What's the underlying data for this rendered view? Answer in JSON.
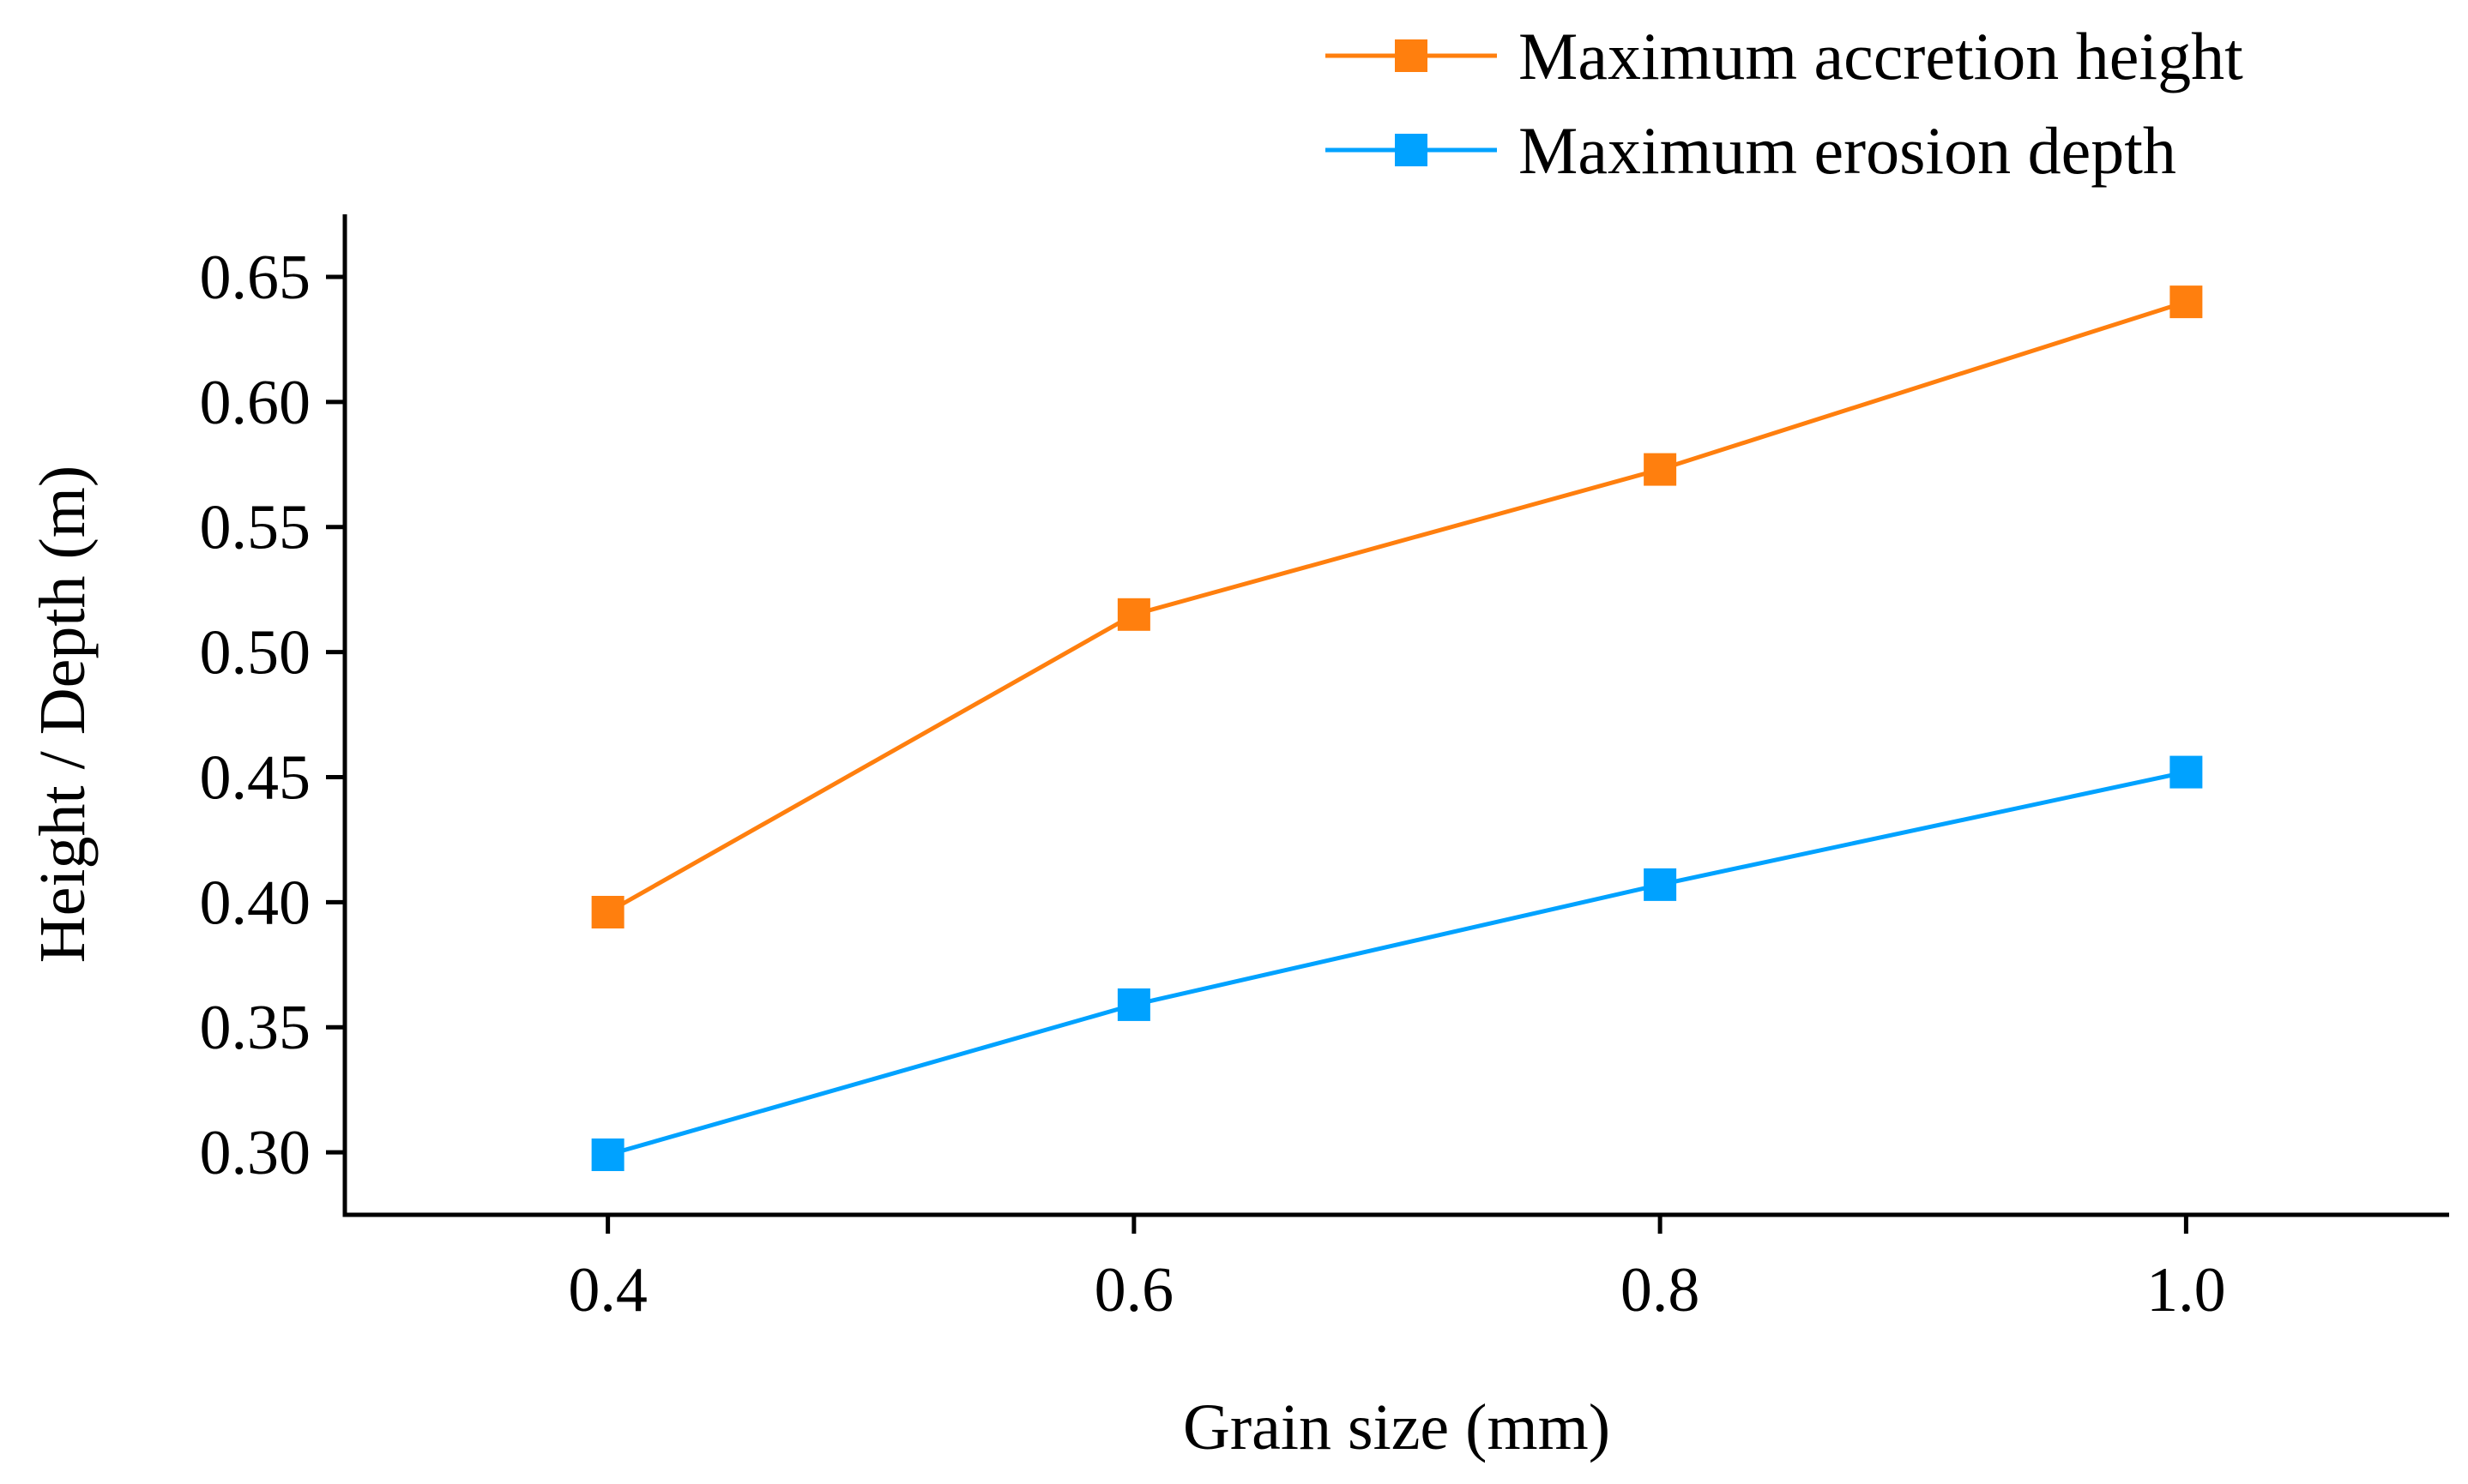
{
  "chart_data": {
    "type": "line",
    "title": "",
    "xlabel": "Grain size (mm)",
    "ylabel": "Height / Depth (m)",
    "x": [
      0.4,
      0.6,
      0.8,
      1.0
    ],
    "xlim": [
      0.3,
      1.1
    ],
    "ylim": [
      0.275,
      0.675
    ],
    "x_ticks": [
      "0.4",
      "0.6",
      "0.8",
      "1.0"
    ],
    "y_ticks": [
      "0.30",
      "0.35",
      "0.40",
      "0.45",
      "0.50",
      "0.55",
      "0.60",
      "0.65"
    ],
    "grid": false,
    "legend_position": "top-right",
    "series": [
      {
        "name": "Maximum accretion height",
        "values": [
          0.396,
          0.515,
          0.573,
          0.64
        ],
        "color": "#FF7F0E",
        "marker": "square"
      },
      {
        "name": "Maximum erosion depth",
        "values": [
          0.299,
          0.359,
          0.407,
          0.452
        ],
        "color": "#00A2FF",
        "marker": "square"
      }
    ]
  }
}
